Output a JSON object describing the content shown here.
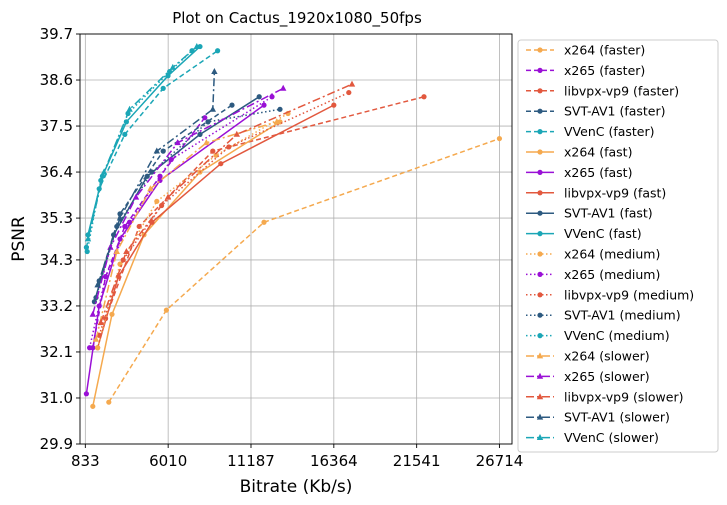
{
  "chart_data": {
    "type": "line",
    "title": "Plot on Cactus_1920x1080_50fps",
    "xlabel": "Bitrate (Kb/s)",
    "ylabel": "PSNR",
    "xlim": [
      500,
      27500
    ],
    "ylim": [
      29.9,
      39.7
    ],
    "xticks": [
      833,
      6010,
      11187,
      16364,
      21541,
      26714
    ],
    "yticks": [
      29.9,
      31.0,
      32.1,
      33.2,
      34.3,
      35.3,
      36.4,
      37.5,
      38.6,
      39.7
    ],
    "grid": true,
    "legend_placement": "outside right",
    "colors": {
      "x264": "#f5a94e",
      "x265": "#9a10d6",
      "libvpx-vp9": "#e2583e",
      "SVT-AV1": "#2d5a80",
      "VVenC": "#1ba6b6"
    },
    "series": [
      {
        "name": "x264 (faster)",
        "codec": "x264",
        "preset": "faster",
        "marker": "circle",
        "x": [
          2300,
          5900,
          12000,
          26714
        ],
        "y": [
          30.9,
          33.1,
          35.2,
          37.2
        ]
      },
      {
        "name": "x265 (faster)",
        "codec": "x265",
        "preset": "faster",
        "marker": "circle",
        "x": [
          1300,
          2100,
          3300,
          5500,
          8300
        ],
        "y": [
          32.2,
          33.9,
          35.1,
          36.3,
          37.7
        ]
      },
      {
        "name": "libvpx-vp9 (faster)",
        "codec": "libvpx-vp9",
        "preset": "faster",
        "marker": "circle",
        "x": [
          2100,
          4200,
          8800,
          22000
        ],
        "y": [
          32.9,
          35.1,
          36.9,
          38.2
        ]
      },
      {
        "name": "SVT-AV1 (faster)",
        "codec": "SVT-AV1",
        "preset": "faster",
        "marker": "circle",
        "x": [
          1700,
          3000,
          5700,
          10000
        ],
        "y": [
          33.8,
          35.4,
          36.9,
          38.0
        ]
      },
      {
        "name": "VVenC (faster)",
        "codec": "VVenC",
        "preset": "faster",
        "marker": "circle",
        "x": [
          900,
          1700,
          3300,
          5700,
          9100
        ],
        "y": [
          34.6,
          36.0,
          37.3,
          38.4,
          39.3
        ]
      },
      {
        "name": "x264 (fast)",
        "codec": "x264",
        "preset": "fast",
        "marker": "circle",
        "x": [
          1300,
          2500,
          4500,
          8000,
          13000
        ],
        "y": [
          30.8,
          33.0,
          34.9,
          36.4,
          37.6
        ]
      },
      {
        "name": "x265 (fast)",
        "codec": "x265",
        "preset": "fast",
        "marker": "circle",
        "x": [
          900,
          1700,
          3000,
          5500,
          12000
        ],
        "y": [
          31.1,
          33.2,
          34.8,
          36.2,
          38.0
        ]
      },
      {
        "name": "libvpx-vp9 (fast)",
        "codec": "libvpx-vp9",
        "preset": "fast",
        "marker": "circle",
        "x": [
          1600,
          2900,
          5000,
          9300,
          16364
        ],
        "y": [
          32.2,
          33.9,
          35.2,
          36.6,
          38.0
        ]
      },
      {
        "name": "SVT-AV1 (fast)",
        "codec": "SVT-AV1",
        "preset": "fast",
        "marker": "circle",
        "x": [
          1400,
          2600,
          4700,
          8000,
          11700
        ],
        "y": [
          33.3,
          34.9,
          36.3,
          37.3,
          38.2
        ]
      },
      {
        "name": "VVenC (fast)",
        "codec": "VVenC",
        "preset": "fast",
        "marker": "circle",
        "x": [
          1000,
          1900,
          3400,
          6000,
          8000
        ],
        "y": [
          34.9,
          36.3,
          37.6,
          38.7,
          39.4
        ]
      },
      {
        "name": "x264 (medium)",
        "codec": "x264",
        "preset": "medium",
        "marker": "circle",
        "x": [
          1600,
          3000,
          5300,
          9000,
          13500
        ],
        "y": [
          32.2,
          34.2,
          35.7,
          36.8,
          37.8
        ]
      },
      {
        "name": "x265 (medium)",
        "codec": "x265",
        "preset": "medium",
        "marker": "circle",
        "x": [
          1100,
          2100,
          3600,
          6200,
          12500
        ],
        "y": [
          32.2,
          33.9,
          35.2,
          36.7,
          38.2
        ]
      },
      {
        "name": "libvpx-vp9 (medium)",
        "codec": "libvpx-vp9",
        "preset": "medium",
        "marker": "circle",
        "x": [
          1700,
          3200,
          5600,
          9800,
          17300
        ],
        "y": [
          32.5,
          34.3,
          35.6,
          37.0,
          38.3
        ]
      },
      {
        "name": "SVT-AV1 (medium)",
        "codec": "SVT-AV1",
        "preset": "medium",
        "marker": "circle",
        "x": [
          1500,
          2800,
          5000,
          8500,
          13000
        ],
        "y": [
          33.4,
          35.1,
          36.4,
          37.6,
          37.9
        ]
      },
      {
        "name": "VVenC (medium)",
        "codec": "VVenC",
        "preset": "medium",
        "marker": "circle",
        "x": [
          950,
          1800,
          3500,
          6100,
          7500
        ],
        "y": [
          34.5,
          36.2,
          37.8,
          38.8,
          39.3
        ]
      },
      {
        "name": "x264 (slower)",
        "codec": "x264",
        "preset": "slower",
        "marker": "triangle",
        "x": [
          1500,
          2800,
          4900,
          8400,
          12800
        ],
        "y": [
          32.4,
          34.5,
          36.0,
          37.1,
          37.6
        ]
      },
      {
        "name": "x265 (slower)",
        "codec": "x265",
        "preset": "slower",
        "marker": "triangle",
        "x": [
          1300,
          2400,
          4000,
          6600,
          13200
        ],
        "y": [
          33.0,
          34.6,
          35.8,
          37.1,
          38.4
        ]
      },
      {
        "name": "libvpx-vp9 (slower)",
        "codec": "libvpx-vp9",
        "preset": "slower",
        "marker": "triangle",
        "x": [
          1800,
          3400,
          6000,
          10300,
          17500
        ],
        "y": [
          32.8,
          34.5,
          35.8,
          37.3,
          38.5
        ]
      },
      {
        "name": "SVT-AV1 (slower)",
        "codec": "SVT-AV1",
        "preset": "slower",
        "marker": "triangle",
        "x": [
          1600,
          3000,
          5300,
          8800,
          8900
        ],
        "y": [
          33.7,
          35.3,
          36.9,
          37.9,
          38.8
        ]
      },
      {
        "name": "VVenC (slower)",
        "codec": "VVenC",
        "preset": "slower",
        "marker": "triangle",
        "x": [
          1000,
          2000,
          3600,
          6300,
          7800
        ],
        "y": [
          34.8,
          36.4,
          37.9,
          38.9,
          39.4
        ]
      }
    ]
  }
}
